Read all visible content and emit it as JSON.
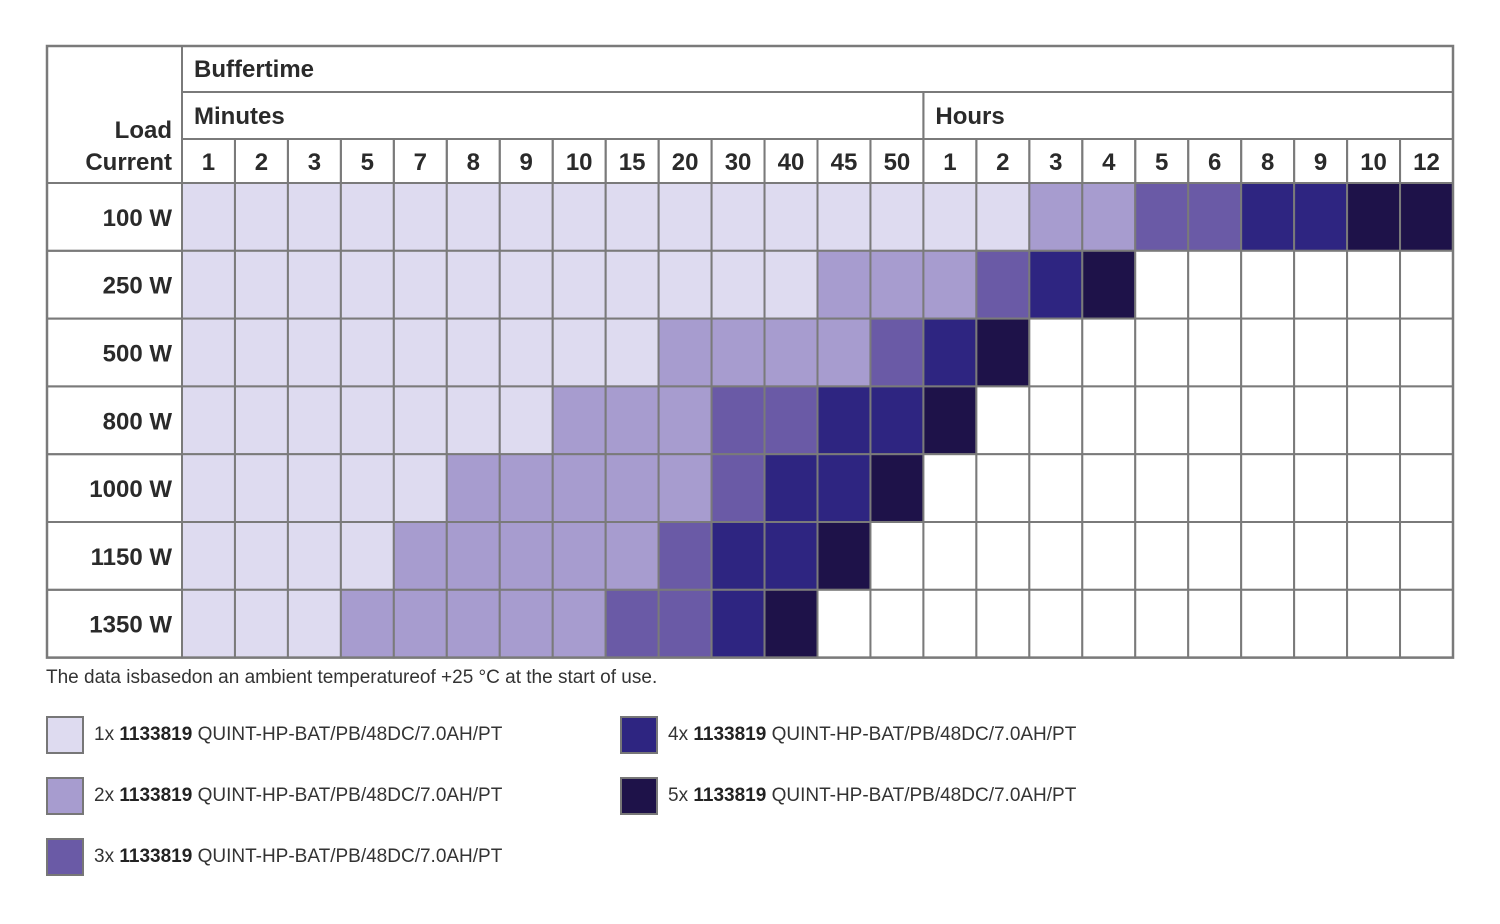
{
  "chart_data": {
    "type": "heatmap",
    "title": "Buffertime",
    "row_axis_label_line1": "Load",
    "row_axis_label_line2": "Current",
    "column_groups": [
      {
        "label": "Minutes",
        "columns": [
          "1",
          "2",
          "3",
          "5",
          "7",
          "8",
          "9",
          "10",
          "15",
          "20",
          "30",
          "40",
          "45",
          "50"
        ]
      },
      {
        "label": "Hours",
        "columns": [
          "1",
          "2",
          "3",
          "4",
          "5",
          "6",
          "8",
          "9",
          "10",
          "12"
        ]
      }
    ],
    "rows": [
      "100 W",
      "250 W",
      "500 W",
      "800 W",
      "1000 W",
      "1150 W",
      "1350 W"
    ],
    "values": [
      [
        1,
        1,
        1,
        1,
        1,
        1,
        1,
        1,
        1,
        1,
        1,
        1,
        1,
        1,
        1,
        1,
        2,
        2,
        3,
        3,
        4,
        4,
        5,
        5
      ],
      [
        1,
        1,
        1,
        1,
        1,
        1,
        1,
        1,
        1,
        1,
        1,
        1,
        2,
        2,
        2,
        3,
        4,
        5,
        0,
        0,
        0,
        0,
        0,
        0
      ],
      [
        1,
        1,
        1,
        1,
        1,
        1,
        1,
        1,
        1,
        2,
        2,
        2,
        2,
        3,
        4,
        5,
        0,
        0,
        0,
        0,
        0,
        0,
        0,
        0
      ],
      [
        1,
        1,
        1,
        1,
        1,
        1,
        1,
        2,
        2,
        2,
        3,
        3,
        4,
        4,
        5,
        0,
        0,
        0,
        0,
        0,
        0,
        0,
        0,
        0
      ],
      [
        1,
        1,
        1,
        1,
        1,
        2,
        2,
        2,
        2,
        2,
        3,
        4,
        4,
        5,
        0,
        0,
        0,
        0,
        0,
        0,
        0,
        0,
        0,
        0
      ],
      [
        1,
        1,
        1,
        1,
        2,
        2,
        2,
        2,
        2,
        3,
        4,
        4,
        5,
        0,
        0,
        0,
        0,
        0,
        0,
        0,
        0,
        0,
        0,
        0
      ],
      [
        1,
        1,
        1,
        2,
        2,
        2,
        2,
        2,
        3,
        3,
        4,
        5,
        0,
        0,
        0,
        0,
        0,
        0,
        0,
        0,
        0,
        0,
        0,
        0
      ]
    ],
    "value_meaning": "number of batteries required; 0 = not achievable",
    "colors": {
      "0": "#ffffff",
      "1": "#dedbf0",
      "2": "#a79ccf",
      "3": "#6a5aa6",
      "4": "#2e2581",
      "5": "#1e1249"
    },
    "grid_color": "#7a7a7a"
  },
  "note": "The data isbasedon an ambient temperatureof +25 °C at the start of use.",
  "legend": [
    {
      "count": "1x",
      "part_number": "1133819",
      "product": "QUINT-HP-BAT/PB/48DC/7.0AH/PT",
      "color": "#dedbf0"
    },
    {
      "count": "2x",
      "part_number": "1133819",
      "product": "QUINT-HP-BAT/PB/48DC/7.0AH/PT",
      "color": "#a79ccf"
    },
    {
      "count": "3x",
      "part_number": "1133819",
      "product": "QUINT-HP-BAT/PB/48DC/7.0AH/PT",
      "color": "#6a5aa6"
    },
    {
      "count": "4x",
      "part_number": "1133819",
      "product": "QUINT-HP-BAT/PB/48DC/7.0AH/PT",
      "color": "#2e2581"
    },
    {
      "count": "5x",
      "part_number": "1133819",
      "product": "QUINT-HP-BAT/PB/48DC/7.0AH/PT",
      "color": "#1e1249"
    }
  ]
}
